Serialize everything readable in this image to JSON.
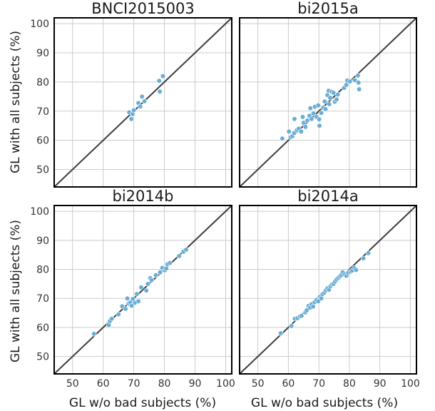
{
  "figure": {
    "ylabel": "GL with all subjects (%)",
    "xlabel": "GL w/o bad subjects (%)"
  },
  "chart_data": [
    {
      "type": "scatter",
      "title": "BNCI2015003",
      "xlabel": "",
      "ylabel": "GL with all subjects (%)",
      "xlim": [
        44,
        102
      ],
      "ylim": [
        44,
        102
      ],
      "xticks": [
        50,
        60,
        70,
        80,
        90,
        100
      ],
      "yticks": [
        50,
        60,
        70,
        80,
        90,
        100
      ],
      "grid": true,
      "reference_line": "y = x",
      "points": [
        [
          68.5,
          69.6
        ],
        [
          69.2,
          67.3
        ],
        [
          69.6,
          69.0
        ],
        [
          70.0,
          70.3
        ],
        [
          71.5,
          72.8
        ],
        [
          72.1,
          71.6
        ],
        [
          72.7,
          75.0
        ],
        [
          73.5,
          73.4
        ],
        [
          78.3,
          80.4
        ],
        [
          78.5,
          76.7
        ],
        [
          79.5,
          82.0
        ]
      ]
    },
    {
      "type": "scatter",
      "title": "bi2015a",
      "xlabel": "",
      "ylabel": "",
      "xlim": [
        44,
        102
      ],
      "ylim": [
        44,
        102
      ],
      "xticks": [
        50,
        60,
        70,
        80,
        90,
        100
      ],
      "yticks": [
        50,
        60,
        70,
        80,
        90,
        100
      ],
      "grid": true,
      "reference_line": "y = x",
      "points": [
        [
          58.0,
          60.6
        ],
        [
          60.2,
          63.0
        ],
        [
          60.7,
          61.0
        ],
        [
          61.3,
          61.4
        ],
        [
          61.9,
          62.5
        ],
        [
          62.0,
          67.3
        ],
        [
          62.8,
          63.5
        ],
        [
          63.4,
          64.0
        ],
        [
          64.2,
          63.0
        ],
        [
          64.7,
          68.0
        ],
        [
          65.0,
          66.0
        ],
        [
          65.6,
          64.6
        ],
        [
          66.2,
          66.8
        ],
        [
          66.9,
          68.4
        ],
        [
          67.2,
          71.0
        ],
        [
          67.6,
          67.3
        ],
        [
          68.2,
          69.2
        ],
        [
          68.7,
          71.5
        ],
        [
          69.2,
          68.0
        ],
        [
          69.8,
          72.0
        ],
        [
          70.1,
          67.2
        ],
        [
          70.2,
          65.0
        ],
        [
          70.8,
          69.4
        ],
        [
          71.4,
          71.2
        ],
        [
          71.9,
          73.3
        ],
        [
          72.2,
          70.7
        ],
        [
          72.8,
          75.5
        ],
        [
          73.2,
          77.0
        ],
        [
          73.4,
          72.4
        ],
        [
          73.7,
          74.6
        ],
        [
          74.2,
          76.6
        ],
        [
          74.8,
          76.3
        ],
        [
          75.2,
          73.2
        ],
        [
          75.8,
          74.0
        ],
        [
          76.2,
          75.7
        ],
        [
          78.3,
          78.0
        ],
        [
          79.0,
          79.0
        ],
        [
          79.3,
          80.5
        ],
        [
          80.2,
          80.2
        ],
        [
          81.8,
          80.6
        ],
        [
          82.8,
          82.2
        ],
        [
          83.0,
          79.8
        ],
        [
          83.2,
          77.5
        ]
      ]
    },
    {
      "type": "scatter",
      "title": "bi2014b",
      "xlabel": "GL w/o bad subjects (%)",
      "ylabel": "GL with all subjects (%)",
      "xlim": [
        44,
        102
      ],
      "ylim": [
        44,
        102
      ],
      "xticks": [
        50,
        60,
        70,
        80,
        90,
        100
      ],
      "yticks": [
        50,
        60,
        70,
        80,
        90,
        100
      ],
      "grid": true,
      "reference_line": "y = x",
      "points": [
        [
          57.0,
          57.8
        ],
        [
          61.8,
          60.8
        ],
        [
          62.2,
          62.2
        ],
        [
          62.8,
          63.0
        ],
        [
          65.0,
          64.5
        ],
        [
          66.2,
          67.3
        ],
        [
          67.3,
          66.4
        ],
        [
          67.9,
          70.0
        ],
        [
          68.3,
          68.2
        ],
        [
          68.8,
          68.6
        ],
        [
          69.3,
          67.5
        ],
        [
          69.7,
          69.8
        ],
        [
          70.4,
          68.5
        ],
        [
          71.0,
          71.5
        ],
        [
          71.5,
          69.0
        ],
        [
          72.4,
          73.8
        ],
        [
          74.1,
          72.7
        ],
        [
          74.6,
          75.0
        ],
        [
          75.4,
          77.0
        ],
        [
          75.8,
          76.3
        ],
        [
          77.2,
          78.0
        ],
        [
          78.6,
          79.0
        ],
        [
          79.3,
          80.5
        ],
        [
          80.2,
          79.7
        ],
        [
          80.6,
          80.3
        ],
        [
          81.0,
          81.8
        ],
        [
          81.8,
          82.2
        ],
        [
          84.8,
          84.6
        ],
        [
          86.2,
          86.1
        ],
        [
          87.1,
          86.8
        ]
      ]
    },
    {
      "type": "scatter",
      "title": "bi2014a",
      "xlabel": "GL w/o bad subjects (%)",
      "ylabel": "",
      "xlim": [
        44,
        102
      ],
      "ylim": [
        44,
        102
      ],
      "xticks": [
        50,
        60,
        70,
        80,
        90,
        100
      ],
      "yticks": [
        50,
        60,
        70,
        80,
        90,
        100
      ],
      "grid": true,
      "reference_line": "y = x",
      "points": [
        [
          57.5,
          58.0
        ],
        [
          61.0,
          60.5
        ],
        [
          62.1,
          63.0
        ],
        [
          63.0,
          63.2
        ],
        [
          63.8,
          63.8
        ],
        [
          64.3,
          64.0
        ],
        [
          65.6,
          65.2
        ],
        [
          66.0,
          65.9
        ],
        [
          66.6,
          67.4
        ],
        [
          67.1,
          66.8
        ],
        [
          67.6,
          68.0
        ],
        [
          68.1,
          67.2
        ],
        [
          68.6,
          68.7
        ],
        [
          69.2,
          69.5
        ],
        [
          69.8,
          69.0
        ],
        [
          70.3,
          70.5
        ],
        [
          70.8,
          70.0
        ],
        [
          71.2,
          71.5
        ],
        [
          71.8,
          72.0
        ],
        [
          72.3,
          72.8
        ],
        [
          72.8,
          73.5
        ],
        [
          73.3,
          73.0
        ],
        [
          73.8,
          74.2
        ],
        [
          74.3,
          74.8
        ],
        [
          74.8,
          75.0
        ],
        [
          75.3,
          75.8
        ],
        [
          75.8,
          76.5
        ],
        [
          76.3,
          77.0
        ],
        [
          76.8,
          77.5
        ],
        [
          77.3,
          78.0
        ],
        [
          77.8,
          79.0
        ],
        [
          78.4,
          78.3
        ],
        [
          79.0,
          77.8
        ],
        [
          79.6,
          78.8
        ],
        [
          80.4,
          79.2
        ],
        [
          80.9,
          79.6
        ],
        [
          81.6,
          80.5
        ],
        [
          82.2,
          79.8
        ],
        [
          84.6,
          83.8
        ],
        [
          86.2,
          85.6
        ]
      ]
    }
  ]
}
